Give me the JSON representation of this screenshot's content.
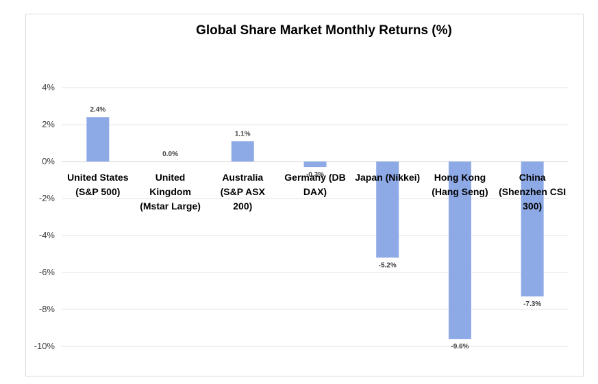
{
  "chart_data": {
    "type": "bar",
    "title": "Global Share Market Monthly Returns (%)",
    "categories": [
      [
        "United States",
        "(S&P 500)"
      ],
      [
        "United",
        "Kingdom",
        "(Mstar Large)"
      ],
      [
        "Australia",
        "(S&P ASX",
        "200)"
      ],
      [
        "Germany (DB",
        "DAX)"
      ],
      [
        "Japan (Nikkei)"
      ],
      [
        "Hong Kong",
        "(Hang Seng)"
      ],
      [
        "China",
        "(Shenzhen CSI",
        "300)"
      ]
    ],
    "values": [
      2.4,
      0.0,
      1.1,
      -0.3,
      -5.2,
      -9.6,
      -7.3
    ],
    "data_labels": [
      "2.4%",
      "0.0%",
      "1.1%",
      "-0.3%",
      "-5.2%",
      "-9.6%",
      "-7.3%"
    ],
    "ylim": [
      -10,
      4
    ],
    "yticks": [
      4,
      2,
      0,
      -2,
      -4,
      -6,
      -8,
      -10
    ],
    "ytick_labels": [
      "4%",
      "2%",
      "0%",
      "-2%",
      "-4%",
      "-6%",
      "-8%",
      "-10%"
    ],
    "xlabel": "",
    "ylabel": "",
    "grid": true,
    "legend": "none",
    "bar_color": "#8eaae6"
  }
}
